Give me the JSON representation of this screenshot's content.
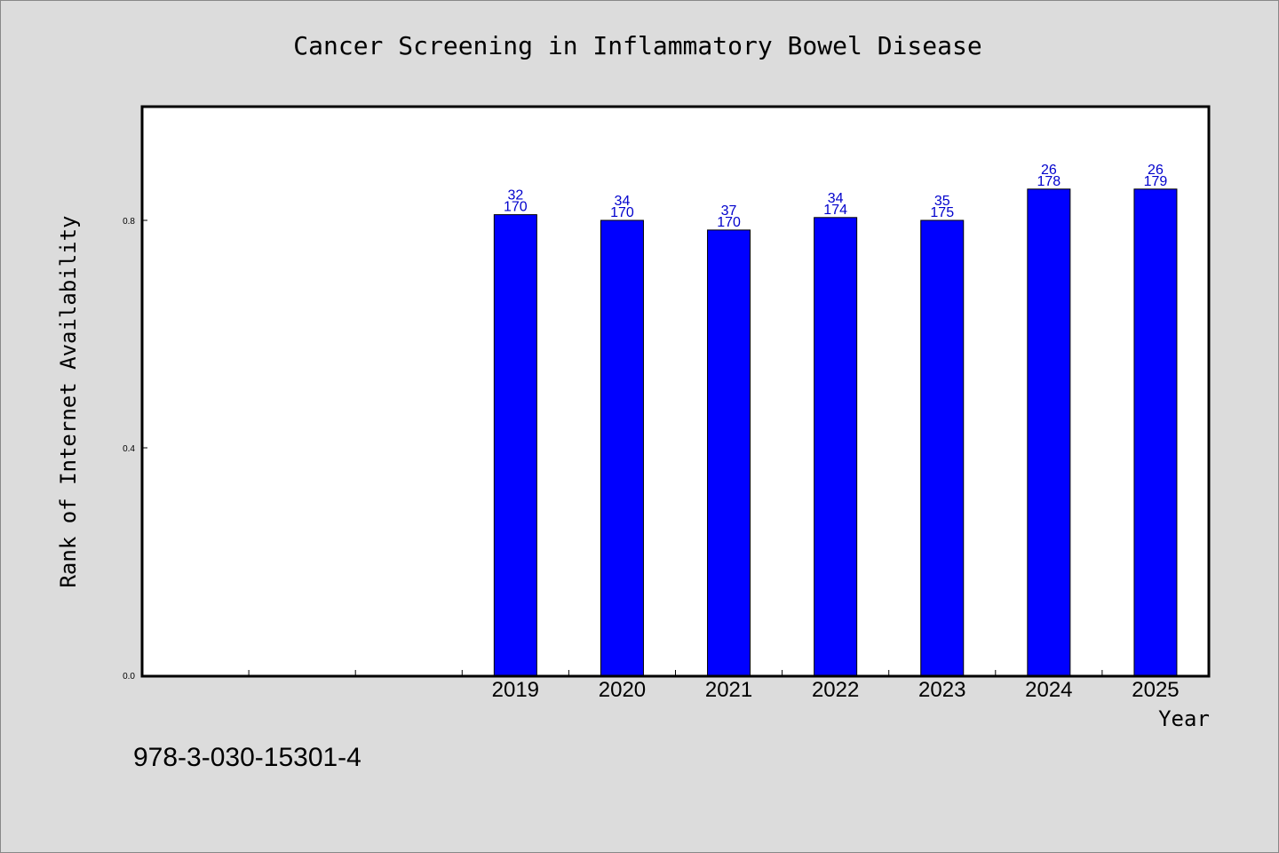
{
  "chart_data": {
    "type": "bar",
    "title": "Cancer Screening in Inflammatory Bowel Disease",
    "xlabel": "Year",
    "ylabel": "Rank of Internet Availability",
    "categories": [
      "",
      "",
      "",
      "2019",
      "2020",
      "2021",
      "2022",
      "2023",
      "2024",
      "2025"
    ],
    "values": [
      null,
      null,
      null,
      0.81,
      0.8,
      0.783,
      0.805,
      0.8,
      0.855,
      0.855
    ],
    "bar_labels": [
      null,
      null,
      null,
      [
        "32",
        "170"
      ],
      [
        "34",
        "170"
      ],
      [
        "37",
        "170"
      ],
      [
        "34",
        "174"
      ],
      [
        "35",
        "175"
      ],
      [
        "26",
        "178"
      ],
      [
        "26",
        "179"
      ]
    ],
    "yticks": [
      "0.0",
      "0.4",
      "0.8"
    ],
    "ylim": [
      0,
      1.0
    ],
    "grid": false,
    "bar_color": "#0000ff",
    "label_color": "#0000cc"
  },
  "footer": {
    "isbn": "978-3-030-15301-4"
  }
}
